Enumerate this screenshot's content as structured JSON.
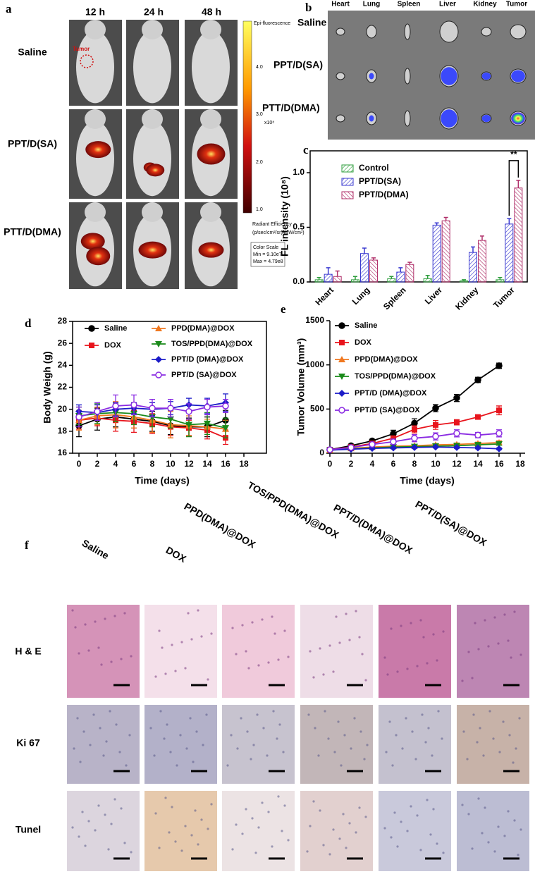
{
  "panel_labels": [
    "a",
    "b",
    "c",
    "d",
    "e",
    "f"
  ],
  "imaging": {
    "columns": [
      "12 h",
      "24 h",
      "48 h"
    ],
    "rows": [
      "Saline",
      "PPT/D(SA)",
      "PTT/D(DMA)"
    ],
    "tumor_label": "Tumor",
    "scale": {
      "title": "Epi-fluorescence",
      "ticks": [
        "4.0",
        "3.0",
        "2.0",
        "1.0"
      ],
      "multiplier": "x10⁸",
      "unit_title": "Radiant Efficiency",
      "unit": "(p/sec/cm²/sr)/(µW/cm²)",
      "color_scale": "Color Scale",
      "min": "Min = 9.10e7",
      "max": "Max = 4.79e8"
    }
  },
  "organs": {
    "columns": [
      "Heart",
      "Lung",
      "Spleen",
      "Liver",
      "Kidney",
      "Tumor"
    ],
    "rows": [
      "Saline",
      "PPT/D(SA)",
      "PTT/D(DMA)"
    ]
  },
  "chart_data": [
    {
      "type": "bar",
      "ylabel": "FL intensity (10⁸)",
      "categories": [
        "Heart",
        "Lung",
        "Spleen",
        "Liver",
        "Kidney",
        "Tumor"
      ],
      "series": [
        {
          "name": "Control",
          "color": "#2e9e3c",
          "values": [
            0.02,
            0.02,
            0.03,
            0.03,
            0.01,
            0.02
          ],
          "errors": [
            0.02,
            0.03,
            0.02,
            0.03,
            0.01,
            0.02
          ]
        },
        {
          "name": "PPT/D(SA)",
          "color": "#3a3ad0",
          "values": [
            0.07,
            0.26,
            0.09,
            0.52,
            0.27,
            0.53
          ],
          "errors": [
            0.06,
            0.05,
            0.04,
            0.02,
            0.05,
            0.05
          ]
        },
        {
          "name": "PPT/D(DMA)",
          "color": "#b0306a",
          "values": [
            0.05,
            0.2,
            0.16,
            0.56,
            0.38,
            0.86
          ],
          "errors": [
            0.05,
            0.02,
            0.02,
            0.03,
            0.04,
            0.07
          ]
        }
      ],
      "ylim": [
        0,
        1.2
      ],
      "yticks": [
        {
          "value": 0,
          "label": "0.0"
        },
        {
          "value": 0.5,
          "label": "0.5"
        },
        {
          "value": 1,
          "label": "1.0"
        }
      ],
      "legend": "upper left",
      "hatch": true,
      "annotation": "**"
    },
    {
      "type": "line",
      "xlabel": "Time (days)",
      "ylabel": "Body Weigh (g)",
      "x": [
        0,
        2,
        4,
        6,
        8,
        10,
        12,
        14,
        16
      ],
      "xlim": [
        0,
        18
      ],
      "xticks": [
        0,
        2,
        4,
        6,
        8,
        10,
        12,
        14,
        16,
        18
      ],
      "ylim": [
        16,
        28
      ],
      "yticks": [
        16,
        18,
        20,
        22,
        24,
        26,
        28
      ],
      "legend": "upper left",
      "series": [
        {
          "name": "Saline",
          "color": "#000000",
          "marker": "circle",
          "values": [
            18.5,
            19.1,
            19.3,
            19.1,
            18.9,
            18.5,
            18.4,
            18.4,
            19.0
          ],
          "errors": [
            1.0,
            1.0,
            0.9,
            0.8,
            0.9,
            0.8,
            0.8,
            0.9,
            0.9
          ]
        },
        {
          "name": "DOX",
          "color": "#e8141c",
          "marker": "square",
          "values": [
            19.0,
            19.2,
            19.0,
            18.9,
            18.7,
            18.4,
            18.3,
            18.1,
            17.4
          ],
          "errors": [
            0.8,
            0.7,
            1.0,
            1.0,
            0.9,
            0.8,
            0.7,
            0.8,
            0.6
          ]
        },
        {
          "name": "PPD(DMA)@DOX",
          "color": "#f07820",
          "marker": "triangle-up",
          "values": [
            19.0,
            19.4,
            19.5,
            19.3,
            19.0,
            18.6,
            18.5,
            18.4,
            18.2
          ],
          "errors": [
            0.9,
            0.8,
            1.2,
            1.0,
            1.1,
            1.2,
            0.9,
            0.7,
            0.8
          ]
        },
        {
          "name": "TOS/PPD(DMA)@DOX",
          "color": "#1a8a1a",
          "marker": "triangle-down",
          "values": [
            19.4,
            19.6,
            19.7,
            19.6,
            19.3,
            19.1,
            18.6,
            18.7,
            18.3
          ],
          "errors": [
            0.8,
            0.9,
            0.8,
            1.0,
            0.9,
            0.8,
            1.1,
            1.0,
            0.9
          ]
        },
        {
          "name": "PPT/D (DMA)@DOX",
          "color": "#1c1cc8",
          "marker": "diamond",
          "values": [
            19.8,
            19.7,
            20.0,
            20.1,
            20.0,
            20.1,
            20.4,
            20.3,
            20.6
          ],
          "errors": [
            0.6,
            0.7,
            0.6,
            0.5,
            0.6,
            0.6,
            0.6,
            0.7,
            0.8
          ]
        },
        {
          "name": "PPT/D (SA)@DOX",
          "color": "#8a2be2",
          "marker": "circle-open",
          "values": [
            19.3,
            19.8,
            20.3,
            20.4,
            20.1,
            20.1,
            19.8,
            20.2,
            20.3
          ],
          "errors": [
            0.9,
            0.8,
            1.0,
            0.9,
            0.8,
            0.8,
            0.7,
            0.7,
            0.6
          ]
        }
      ]
    },
    {
      "type": "line",
      "xlabel": "Time (days)",
      "ylabel": "Tumor Volume (mm³)",
      "x": [
        0,
        2,
        4,
        6,
        8,
        10,
        12,
        14,
        16
      ],
      "xlim": [
        0,
        18
      ],
      "xticks": [
        0,
        2,
        4,
        6,
        8,
        10,
        12,
        14,
        16,
        18
      ],
      "ylim": [
        0,
        1500
      ],
      "yticks": [
        0,
        500,
        1000,
        1500
      ],
      "legend": "upper left",
      "series": [
        {
          "name": "Saline",
          "color": "#000000",
          "marker": "circle",
          "values": [
            40,
            85,
            140,
            220,
            340,
            510,
            625,
            830,
            990
          ],
          "errors": [
            15,
            15,
            15,
            40,
            50,
            40,
            40,
            30,
            30
          ]
        },
        {
          "name": "DOX",
          "color": "#e8141c",
          "marker": "square",
          "values": [
            40,
            70,
            110,
            170,
            270,
            320,
            350,
            410,
            485
          ],
          "errors": [
            10,
            10,
            15,
            20,
            40,
            50,
            30,
            20,
            50
          ]
        },
        {
          "name": "PPD(DMA)@DOX",
          "color": "#f07820",
          "marker": "triangle-up",
          "values": [
            35,
            55,
            70,
            80,
            85,
            95,
            100,
            110,
            120
          ],
          "errors": [
            10,
            10,
            10,
            10,
            10,
            15,
            15,
            15,
            20
          ]
        },
        {
          "name": "TOS/PPD(DMA)@DOX",
          "color": "#1a8a1a",
          "marker": "triangle-down",
          "values": [
            35,
            50,
            60,
            70,
            75,
            80,
            85,
            95,
            105
          ],
          "errors": [
            10,
            10,
            10,
            10,
            10,
            10,
            10,
            15,
            15
          ]
        },
        {
          "name": "PPT/D (DMA)@DOX",
          "color": "#1c1cc8",
          "marker": "diamond",
          "values": [
            35,
            45,
            55,
            60,
            65,
            70,
            65,
            60,
            50
          ],
          "errors": [
            10,
            10,
            10,
            10,
            10,
            10,
            10,
            10,
            10
          ]
        },
        {
          "name": "PPT/D (SA)@DOX",
          "color": "#8a2be2",
          "marker": "circle-open",
          "values": [
            40,
            65,
            100,
            130,
            170,
            190,
            225,
            205,
            225
          ],
          "errors": [
            10,
            15,
            20,
            30,
            40,
            40,
            40,
            30,
            40
          ]
        }
      ]
    }
  ],
  "histology": {
    "columns": [
      "Saline",
      "DOX",
      "PPD(DMA)@DOX",
      "TOS/PPD(DMA)@DOX",
      "PPT/D(DMA)@DOX",
      "PPT/D(SA)@DOX"
    ],
    "rows": [
      "H & E",
      "Ki 67",
      "Tunel"
    ]
  }
}
